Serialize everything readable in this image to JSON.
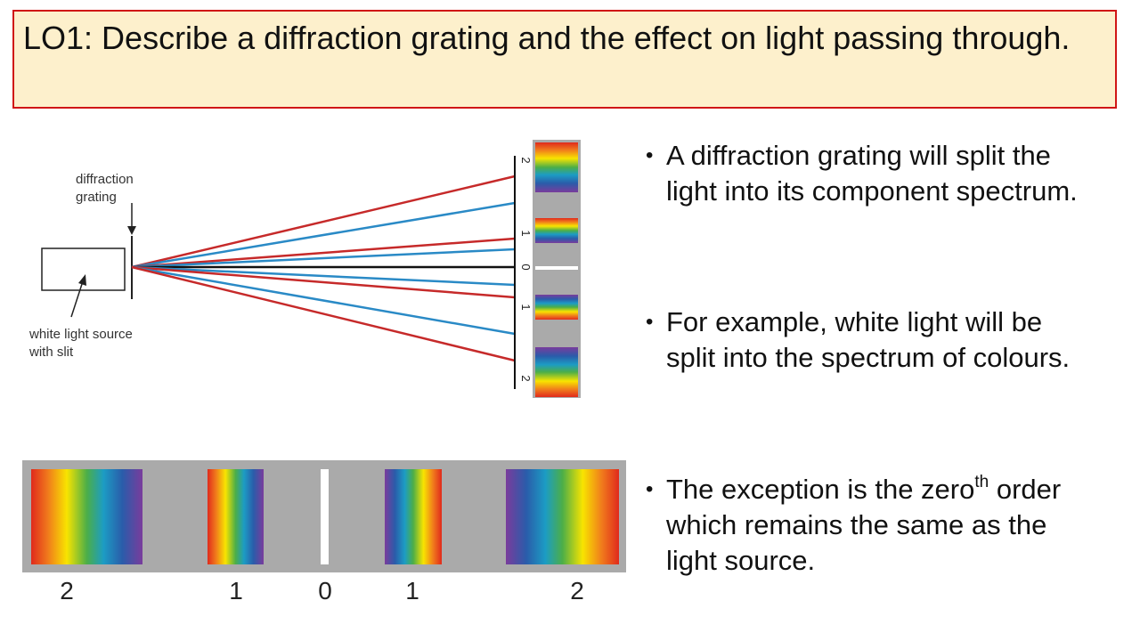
{
  "header": {
    "title": "LO1: Describe a diffraction grating and the effect on light passing through."
  },
  "diagram": {
    "grating_label": [
      "diffraction",
      "grating"
    ],
    "source_label": [
      "white light source",
      "with slit"
    ],
    "screen_orders": [
      "2",
      "1",
      "0",
      "1",
      "2"
    ]
  },
  "strip": {
    "orders": [
      "2",
      "1",
      "0",
      "1",
      "2"
    ]
  },
  "bullets": [
    {
      "text": "A diffraction grating will split the light into its component spectrum."
    },
    {
      "text": "For example, white light will be split into the spectrum of colours."
    },
    {
      "text": "The exception is the zero",
      "sup": "th",
      "rest": " order which remains the same as the light source."
    }
  ]
}
